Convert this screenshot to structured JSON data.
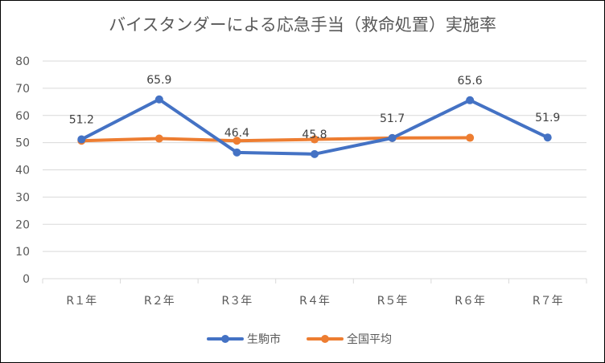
{
  "chart_data": {
    "type": "line",
    "title": "バイスタンダーによる応急手当（救命処置）実施率",
    "categories": [
      "R１年",
      "R２年",
      "R３年",
      "R４年",
      "R５年",
      "R６年",
      "R７年"
    ],
    "ylim": [
      0,
      80
    ],
    "yticks": [
      0,
      10,
      20,
      30,
      40,
      50,
      60,
      70,
      80
    ],
    "ytick_labels": [
      "0",
      "10",
      "20",
      "30",
      "40",
      "50",
      "60",
      "70",
      "80"
    ],
    "grid": true,
    "legend_position": "bottom",
    "series": [
      {
        "name": "生駒市",
        "color": "#4472C4",
        "values": [
          51.2,
          65.9,
          46.4,
          45.8,
          51.7,
          65.6,
          51.9
        ],
        "data_labels": [
          "51.2",
          "65.9",
          "46.4",
          "45.8",
          "51.7",
          "65.6",
          "51.9"
        ]
      },
      {
        "name": "全国平均",
        "color": "#ED7D31",
        "values": [
          50.7,
          51.5,
          50.7,
          51.2,
          51.7,
          51.8,
          null
        ]
      }
    ]
  }
}
